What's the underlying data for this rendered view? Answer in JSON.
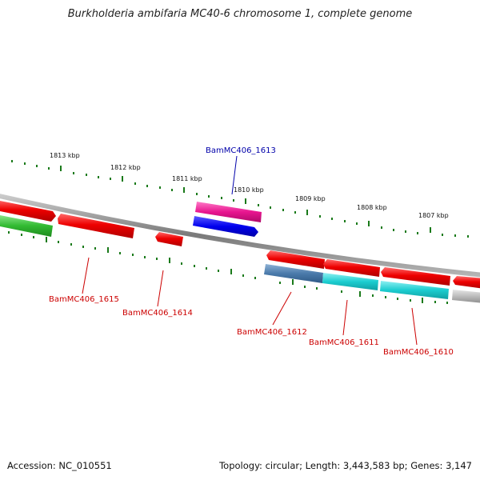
{
  "title": "Burkholderia ambifaria MC40-6 chromosome 1, complete genome",
  "footer": {
    "accession": "Accession: NC_010551",
    "summary": "Topology: circular; Length: 3,443,583 bp; Genes: 3,147"
  },
  "kbp_labels": [
    "1813 kbp",
    "1812 kbp",
    "1811 kbp",
    "1810 kbp",
    "1809 kbp",
    "1808 kbp",
    "1807 kbp"
  ],
  "gene_labels": [
    {
      "id": "BamMC406_1613",
      "color": "#0000aa"
    },
    {
      "id": "BamMC406_1615",
      "color": "#cc0000"
    },
    {
      "id": "BamMC406_1614",
      "color": "#cc0000"
    },
    {
      "id": "BamMC406_1612",
      "color": "#cc0000"
    },
    {
      "id": "BamMC406_1611",
      "color": "#cc0000"
    },
    {
      "id": "BamMC406_1610",
      "color": "#cc0000"
    }
  ],
  "colors": {
    "backbone": "#8a8a8a",
    "tick": "#1a7a1a",
    "gene_red": "#ee0000",
    "gene_magenta": "#e8158f",
    "gene_blue": "#0000ee",
    "gene_green": "#33bb33",
    "gene_steelblue": "#4a7aaa",
    "gene_cyan": "#1ccdd0",
    "gene_gray": "#bbbbbb"
  }
}
